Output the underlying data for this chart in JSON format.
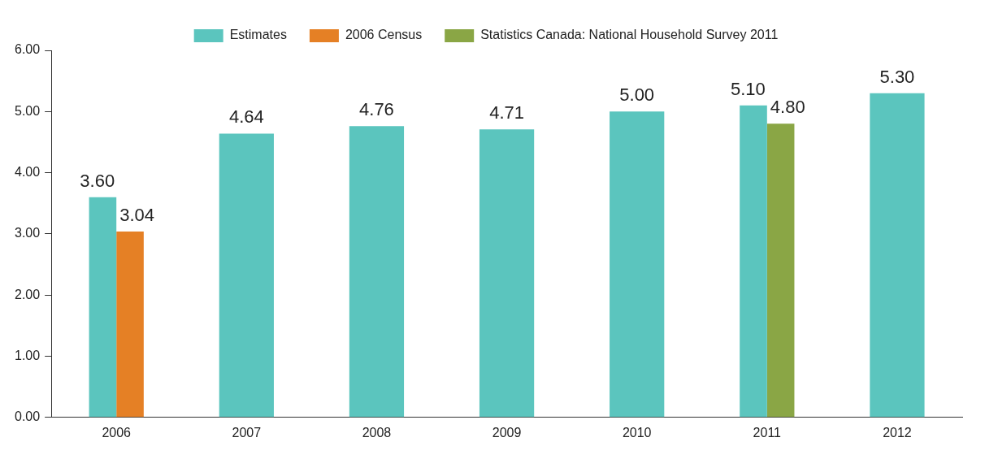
{
  "chart_data": {
    "type": "bar",
    "categories": [
      "2006",
      "2007",
      "2008",
      "2009",
      "2010",
      "2011",
      "2012"
    ],
    "series": [
      {
        "name": "Estimates",
        "color": "#5bc5be",
        "values": [
          3.6,
          4.64,
          4.76,
          4.71,
          5.0,
          5.1,
          5.3
        ],
        "value_labels": [
          "3.60",
          "4.64",
          "4.76",
          "4.71",
          "5.00",
          "5.10",
          "5.30"
        ]
      },
      {
        "name": "2006 Census",
        "color": "#e58025",
        "values": [
          3.04,
          null,
          null,
          null,
          null,
          null,
          null
        ],
        "value_labels": [
          "3.04",
          null,
          null,
          null,
          null,
          null,
          null
        ]
      },
      {
        "name": "Statistics Canada: National Household Survey 2011",
        "color": "#8aa645",
        "values": [
          null,
          null,
          null,
          null,
          null,
          4.8,
          null
        ],
        "value_labels": [
          null,
          null,
          null,
          null,
          null,
          "4.80",
          null
        ]
      }
    ],
    "ylim": [
      0,
      6
    ],
    "yticks": [
      {
        "value": 0,
        "label": "0.00"
      },
      {
        "value": 1,
        "label": "1.00"
      },
      {
        "value": 2,
        "label": "2.00"
      },
      {
        "value": 3,
        "label": "3.00"
      },
      {
        "value": 4,
        "label": "4.00"
      },
      {
        "value": 5,
        "label": "5.00"
      },
      {
        "value": 6,
        "label": "6.00"
      }
    ],
    "grid": false,
    "legend": "top"
  }
}
